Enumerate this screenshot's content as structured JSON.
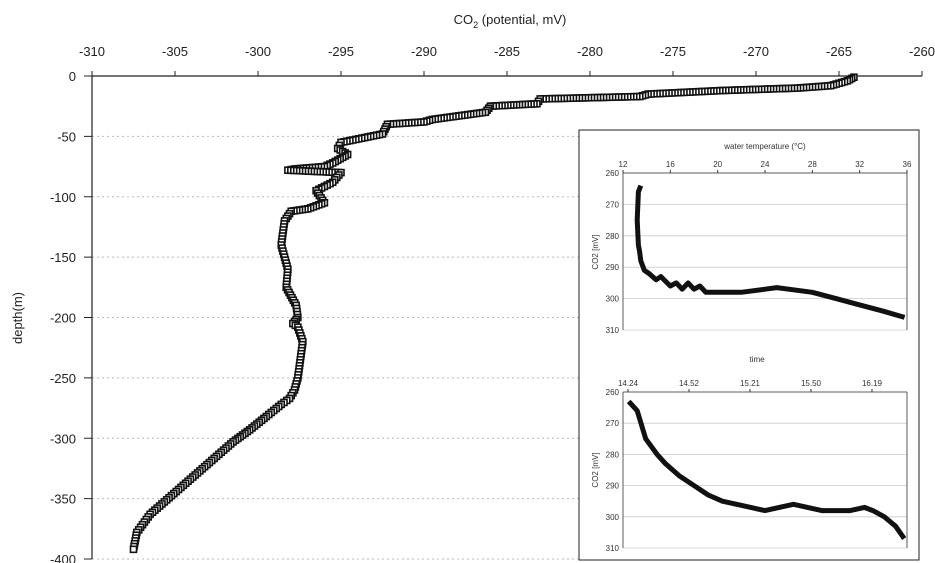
{
  "chart_data": [
    {
      "type": "scatter",
      "title": "",
      "xlabel": "CO2 (potential, mV)",
      "xlabel_main": "CO",
      "xlabel_sub": "2",
      "xlabel_rest": " (potential, mV)",
      "ylabel": "depth(m)",
      "xlim": [
        -310,
        -260
      ],
      "ylim": [
        -400,
        0
      ],
      "x_ticks": [
        -310,
        -305,
        -300,
        -295,
        -290,
        -285,
        -280,
        -275,
        -270,
        -265,
        -260
      ],
      "y_ticks": [
        0,
        -50,
        -100,
        -150,
        -200,
        -250,
        -300,
        -350,
        -400
      ],
      "grid": "horizontal dotted",
      "marker_color": "#111111",
      "series": [
        {
          "x": [
            -264.1,
            -264.5,
            -265.5,
            -267.5,
            -272,
            -276.5,
            -277,
            -283,
            -283.2,
            -286,
            -286.3,
            -289.5,
            -290,
            -292.2,
            -292.5,
            -295,
            -295.2,
            -294.6,
            -295.5,
            -296,
            -297.8,
            -298.2,
            -295,
            -295.5,
            -296.5,
            -296,
            -297,
            -298,
            -298.4,
            -298.6,
            -298.2,
            -298.3,
            -297.7,
            -297.6,
            -297.9,
            -297.6,
            -297.3,
            -297.5,
            -297.6,
            -297.8,
            -298.1,
            -298.6,
            -299.5,
            -300.5,
            -301.5,
            -302.5,
            -303.5,
            -304.5,
            -305.5,
            -306.5,
            -307.3,
            -307.5
          ],
          "y": [
            -1,
            -4,
            -8,
            -10,
            -12,
            -15,
            -17,
            -19,
            -23,
            -25,
            -30,
            -36,
            -38,
            -40,
            -48,
            -55,
            -60,
            -65,
            -72,
            -75,
            -77,
            -78,
            -80,
            -88,
            -95,
            -105,
            -110,
            -112,
            -120,
            -140,
            -160,
            -175,
            -190,
            -200,
            -205,
            -208,
            -220,
            -240,
            -250,
            -260,
            -267,
            -272,
            -282,
            -293,
            -303,
            -315,
            -327,
            -339,
            -351,
            -363,
            -378,
            -392
          ]
        }
      ]
    },
    {
      "type": "line",
      "title": "water temperature (°C)",
      "xlabel": "water temperature (°C)",
      "ylabel": "CO2 [mV]",
      "xlim": [
        12,
        36
      ],
      "ylim": [
        -310,
        -260
      ],
      "x_ticks": [
        "12",
        "16",
        "20",
        "24",
        "28",
        "32",
        "36"
      ],
      "y_ticks": [
        "-260",
        "-270",
        "-280",
        "-290",
        "-300",
        "-310"
      ],
      "y_tick_labels": [
        "260",
        "270",
        "280",
        "290",
        "300",
        "310"
      ],
      "series": [
        {
          "x": [
            13.5,
            13.3,
            13.2,
            13.3,
            13.4,
            13.5,
            13.8,
            14.2,
            14.8,
            15.2,
            16,
            16.5,
            17,
            17.5,
            18,
            18.5,
            19,
            20,
            22,
            24,
            25,
            26,
            28,
            30,
            32,
            34,
            35.8
          ],
          "y": [
            -264,
            -266,
            -275,
            -283,
            -285,
            -288,
            -291,
            -292,
            -294,
            -293,
            -296,
            -295,
            -297,
            -295,
            -297,
            -296,
            -298,
            -298,
            -298,
            -297,
            -296.5,
            -297,
            -298,
            -300,
            -302,
            -304,
            -306
          ]
        }
      ]
    },
    {
      "type": "line",
      "title": "time",
      "xlabel": "time",
      "ylabel": "CO2 [mV]",
      "xlim": [
        0,
        1
      ],
      "ylim": [
        -310,
        -260
      ],
      "x_ticks": [
        "14.24",
        "14.52",
        "15.21",
        "15.50",
        "16.19"
      ],
      "y_ticks": [
        "-260",
        "-270",
        "-280",
        "-290",
        "-300",
        "-310"
      ],
      "y_tick_labels": [
        "260",
        "270",
        "280",
        "290",
        "300",
        "310"
      ],
      "series": [
        {
          "x": [
            0.02,
            0.05,
            0.08,
            0.12,
            0.15,
            0.2,
            0.25,
            0.3,
            0.35,
            0.4,
            0.45,
            0.5,
            0.55,
            0.6,
            0.65,
            0.7,
            0.75,
            0.8,
            0.85,
            0.88,
            0.92,
            0.96,
            0.99
          ],
          "y": [
            -263,
            -266,
            -275,
            -280,
            -283,
            -287,
            -290,
            -293,
            -295,
            -296,
            -297,
            -298,
            -297,
            -296,
            -297,
            -298,
            -298,
            -298,
            -297,
            -298,
            -300,
            -303,
            -307
          ]
        }
      ]
    }
  ]
}
